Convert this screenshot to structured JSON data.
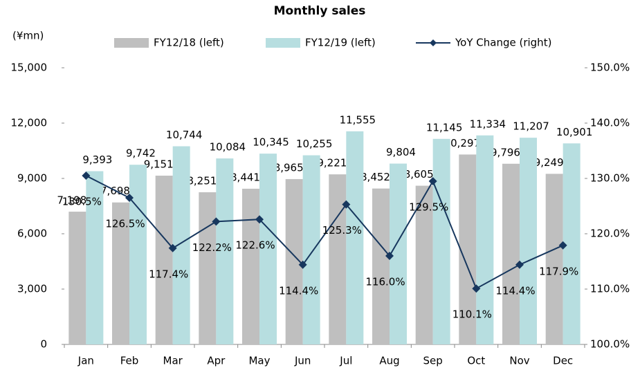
{
  "chart_data": {
    "type": "bar_line",
    "title": "Monthly sales",
    "y_label": "(¥mn)",
    "categories": [
      "Jan",
      "Feb",
      "Mar",
      "Apr",
      "May",
      "Jun",
      "Jul",
      "Aug",
      "Sep",
      "Oct",
      "Nov",
      "Dec"
    ],
    "series": [
      {
        "name": "FY12/18 (left)",
        "type": "bar",
        "color": "#bfbfbf",
        "values": [
          7198,
          7698,
          9151,
          8251,
          8441,
          8965,
          9221,
          8452,
          8605,
          10297,
          9796,
          9249
        ],
        "value_labels": [
          "7,198",
          "7,698",
          "9,151",
          "8,251",
          "8,441",
          "8,965",
          "9,221",
          "8,452",
          "8,605",
          "10,297",
          "9,796",
          "9,249"
        ]
      },
      {
        "name": "FY12/19 (left)",
        "type": "bar",
        "color": "#b7dee0",
        "values": [
          9393,
          9742,
          10744,
          10084,
          10345,
          10255,
          11555,
          9804,
          11145,
          11334,
          11207,
          10901
        ],
        "value_labels": [
          "9,393",
          "9,742",
          "10,744",
          "10,084",
          "10,345",
          "10,255",
          "11,555",
          "9,804",
          "11,145",
          "11,334",
          "11,207",
          "10,901"
        ]
      },
      {
        "name": "YoY Change (right)",
        "type": "line",
        "axis": "y2",
        "color": "#17375e",
        "values": [
          130.5,
          126.5,
          117.4,
          122.2,
          122.6,
          114.4,
          125.3,
          116,
          129.5,
          110.1,
          114.4,
          117.9
        ],
        "value_labels": [
          "130.5%",
          "126.5%",
          "117.4%",
          "122.2%",
          "122.6%",
          "114.4%",
          "125.3%",
          "116.0%",
          "129.5%",
          "110.1%",
          "114.4%",
          "117.9%"
        ]
      }
    ],
    "ylim": [
      0,
      15000
    ],
    "yticks": [
      0,
      {
        "value": 3000,
        "label": "3,000"
      },
      {
        "value": 6000,
        "label": "6,000"
      },
      {
        "value": 9000,
        "label": "9,000"
      },
      {
        "value": 12000,
        "label": "12,000"
      },
      {
        "value": 15000,
        "label": "15,000"
      }
    ],
    "y2lim": [
      100,
      150
    ],
    "y2ticks": [
      {
        "value": 100,
        "label": "100.0%"
      },
      {
        "value": 110,
        "label": "110.0%"
      },
      {
        "value": 120,
        "label": "120.0%"
      },
      {
        "value": 130,
        "label": "130.0%"
      },
      {
        "value": 140,
        "label": "140.0%"
      },
      {
        "value": 150,
        "label": "150.0%"
      }
    ],
    "grid": false,
    "legend": "top"
  }
}
